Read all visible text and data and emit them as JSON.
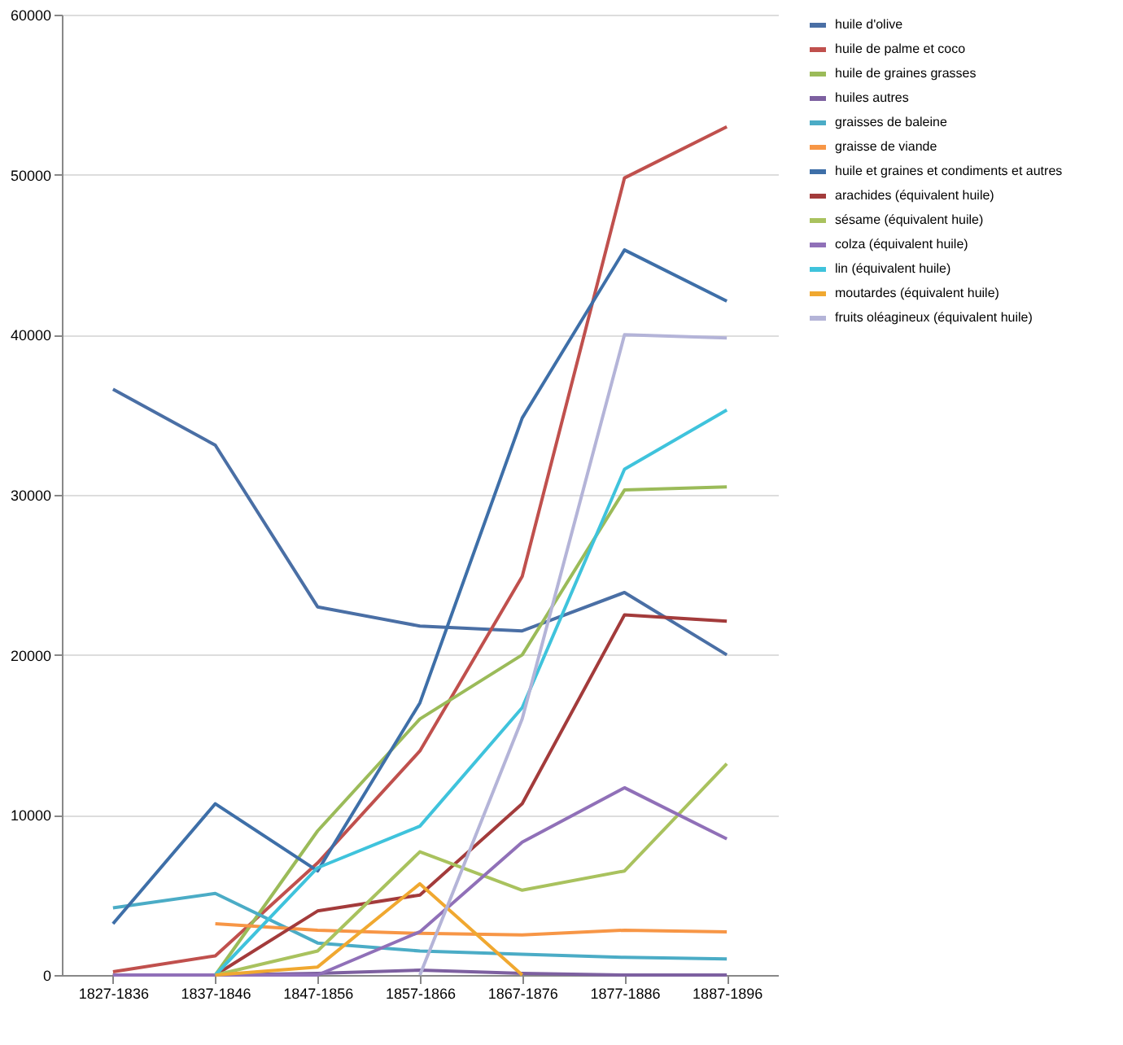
{
  "chart_data": {
    "type": "line",
    "categories": [
      "1827-1836",
      "1837-1846",
      "1847-1856",
      "1857-1866",
      "1867-1876",
      "1877-1886",
      "1887-1896"
    ],
    "series": [
      {
        "name": "huile d'olive",
        "color": "#4a6fa5",
        "values": [
          36600,
          33100,
          23000,
          21800,
          21500,
          23900,
          20000
        ]
      },
      {
        "name": "huile de palme et coco",
        "color": "#c0504d",
        "values": [
          200,
          1200,
          7000,
          14000,
          24900,
          49800,
          53000
        ]
      },
      {
        "name": "huile de graines grasses",
        "color": "#9bbb59",
        "values": [
          0,
          0,
          9000,
          16000,
          20000,
          30300,
          30500
        ]
      },
      {
        "name": "huiles autres",
        "color": "#7d60a0",
        "values": [
          0,
          0,
          100,
          300,
          100,
          0,
          0
        ]
      },
      {
        "name": "graisses de baleine",
        "color": "#4bacc6",
        "values": [
          4200,
          5100,
          2000,
          1500,
          1300,
          1100,
          1000
        ]
      },
      {
        "name": "graisse de viande",
        "color": "#f79646",
        "values": [
          null,
          3200,
          2800,
          2600,
          2500,
          2800,
          2700
        ]
      },
      {
        "name": "huile et graines et condiments et autres",
        "color": "#3e6fa8",
        "values": [
          3200,
          10700,
          6500,
          17000,
          34800,
          45300,
          42100
        ]
      },
      {
        "name": "arachides (équivalent huile)",
        "color": "#a33b3b",
        "values": [
          0,
          0,
          4000,
          5000,
          10700,
          22500,
          22100
        ]
      },
      {
        "name": "sésame (équivalent huile)",
        "color": "#a9c25e",
        "values": [
          null,
          0,
          1500,
          7700,
          5300,
          6500,
          13200
        ]
      },
      {
        "name": "colza (équivalent huile)",
        "color": "#9070b8",
        "values": [
          0,
          0,
          0,
          2700,
          8300,
          11700,
          8500
        ]
      },
      {
        "name": "lin (équivalent huile)",
        "color": "#3fc3dc",
        "values": [
          null,
          0,
          6700,
          9300,
          16700,
          31600,
          35300
        ]
      },
      {
        "name": "moutardes (équivalent huile)",
        "color": "#f0a830",
        "values": [
          null,
          0,
          500,
          5700,
          0,
          null,
          null
        ]
      },
      {
        "name": "fruits oléagineux (équivalent huile)",
        "color": "#b4b4d8",
        "values": [
          null,
          null,
          null,
          0,
          16000,
          40000,
          39800
        ]
      }
    ],
    "ylim": [
      0,
      60000
    ],
    "yticks": [
      0,
      10000,
      20000,
      30000,
      40000,
      50000,
      60000
    ],
    "grid": "y",
    "legend": "right"
  }
}
